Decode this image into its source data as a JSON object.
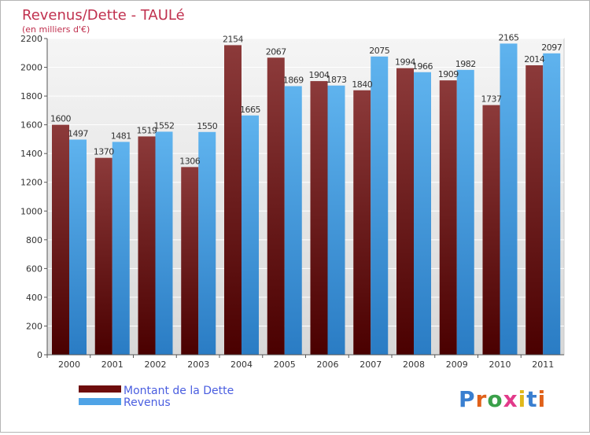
{
  "chart_data": {
    "type": "bar",
    "title": "Revenus/Dette - TAULé",
    "subtitle": "(en milliers d'€)",
    "categories": [
      "2000",
      "2001",
      "2002",
      "2003",
      "2004",
      "2005",
      "2006",
      "2007",
      "2008",
      "2009",
      "2010",
      "2011"
    ],
    "series": [
      {
        "name": "Montant de la Dette",
        "color": "#6e0c0c",
        "values": [
          1600,
          1370,
          1519,
          1306,
          2154,
          2067,
          1904,
          1840,
          1994,
          1909,
          1737,
          2014
        ]
      },
      {
        "name": "Revenus",
        "color": "#4fa3e6",
        "values": [
          1497,
          1481,
          1552,
          1550,
          1665,
          1869,
          1873,
          2075,
          1966,
          1982,
          2165,
          2097
        ]
      }
    ],
    "ylim": [
      0,
      2200
    ],
    "yticks": [
      0,
      200,
      400,
      600,
      800,
      1000,
      1200,
      1400,
      1600,
      1800,
      2000,
      2200
    ],
    "grid": true,
    "legend": "bottom-left"
  },
  "colors": {
    "title": "#c0304e",
    "legend_text": "#4a5ee0",
    "plot_bg": "#e8e8e8"
  },
  "logo": {
    "text": "Proxiti"
  }
}
